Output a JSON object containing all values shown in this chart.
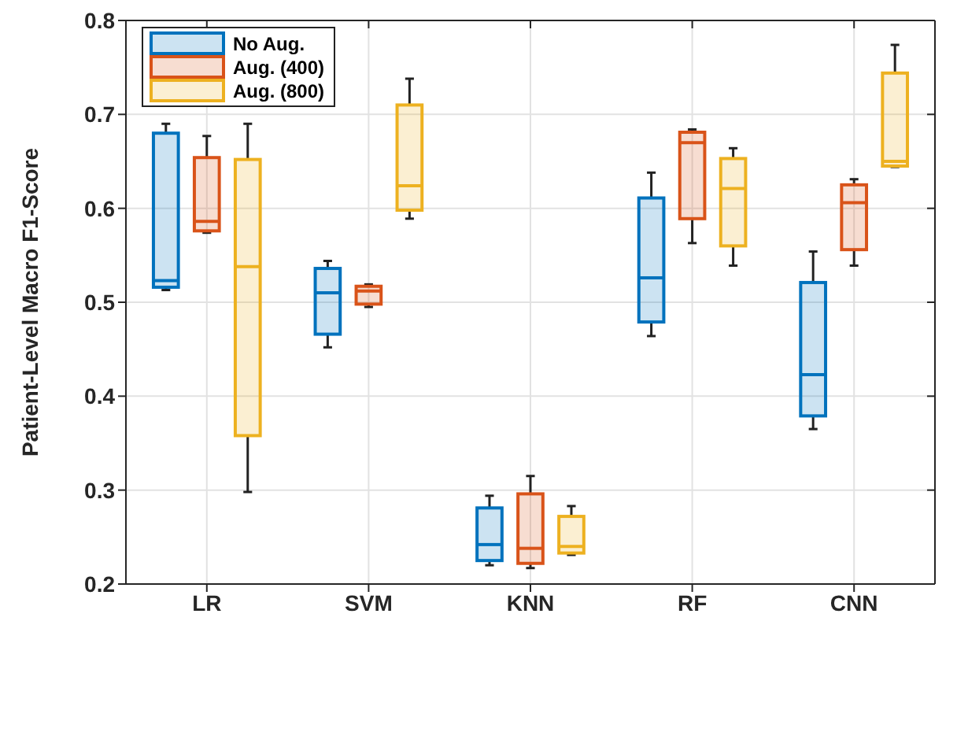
{
  "chart_data": {
    "type": "box",
    "ylabel": "Patient-Level Macro F1-Score",
    "categories": [
      "LR",
      "SVM",
      "KNN",
      "RF",
      "CNN"
    ],
    "ylim": [
      0.2,
      0.8
    ],
    "yticks": [
      0.2,
      0.3,
      0.4,
      0.5,
      0.6,
      0.7,
      0.8
    ],
    "grid": true,
    "legend": "top left",
    "series": [
      {
        "name": "No Aug.",
        "color": "#0072bd",
        "boxes": [
          {
            "low": 0.513,
            "q1": 0.516,
            "median": 0.523,
            "q3": 0.68,
            "high": 0.69
          },
          {
            "low": 0.452,
            "q1": 0.466,
            "median": 0.51,
            "q3": 0.536,
            "high": 0.544
          },
          {
            "low": 0.22,
            "q1": 0.225,
            "median": 0.242,
            "q3": 0.281,
            "high": 0.294
          },
          {
            "low": 0.464,
            "q1": 0.479,
            "median": 0.526,
            "q3": 0.611,
            "high": 0.638
          },
          {
            "low": 0.365,
            "q1": 0.379,
            "median": 0.423,
            "q3": 0.521,
            "high": 0.554
          }
        ]
      },
      {
        "name": "Aug. (400)",
        "color": "#d95319",
        "boxes": [
          {
            "low": 0.574,
            "q1": 0.576,
            "median": 0.586,
            "q3": 0.654,
            "high": 0.677
          },
          {
            "low": 0.495,
            "q1": 0.498,
            "median": 0.512,
            "q3": 0.517,
            "high": 0.519
          },
          {
            "low": 0.217,
            "q1": 0.222,
            "median": 0.238,
            "q3": 0.296,
            "high": 0.315
          },
          {
            "low": 0.563,
            "q1": 0.589,
            "median": 0.67,
            "q3": 0.681,
            "high": 0.684
          },
          {
            "low": 0.539,
            "q1": 0.556,
            "median": 0.606,
            "q3": 0.625,
            "high": 0.631
          }
        ]
      },
      {
        "name": "Aug. (800)",
        "color": "#edb120",
        "boxes": [
          {
            "low": 0.298,
            "q1": 0.358,
            "median": 0.538,
            "q3": 0.652,
            "high": 0.69
          },
          {
            "low": 0.589,
            "q1": 0.598,
            "median": 0.624,
            "q3": 0.71,
            "high": 0.738
          },
          {
            "low": 0.231,
            "q1": 0.233,
            "median": 0.24,
            "q3": 0.272,
            "high": 0.283
          },
          {
            "low": 0.539,
            "q1": 0.56,
            "median": 0.621,
            "q3": 0.653,
            "high": 0.664
          },
          {
            "low": 0.644,
            "q1": 0.645,
            "median": 0.65,
            "q3": 0.744,
            "high": 0.774
          }
        ]
      }
    ]
  }
}
